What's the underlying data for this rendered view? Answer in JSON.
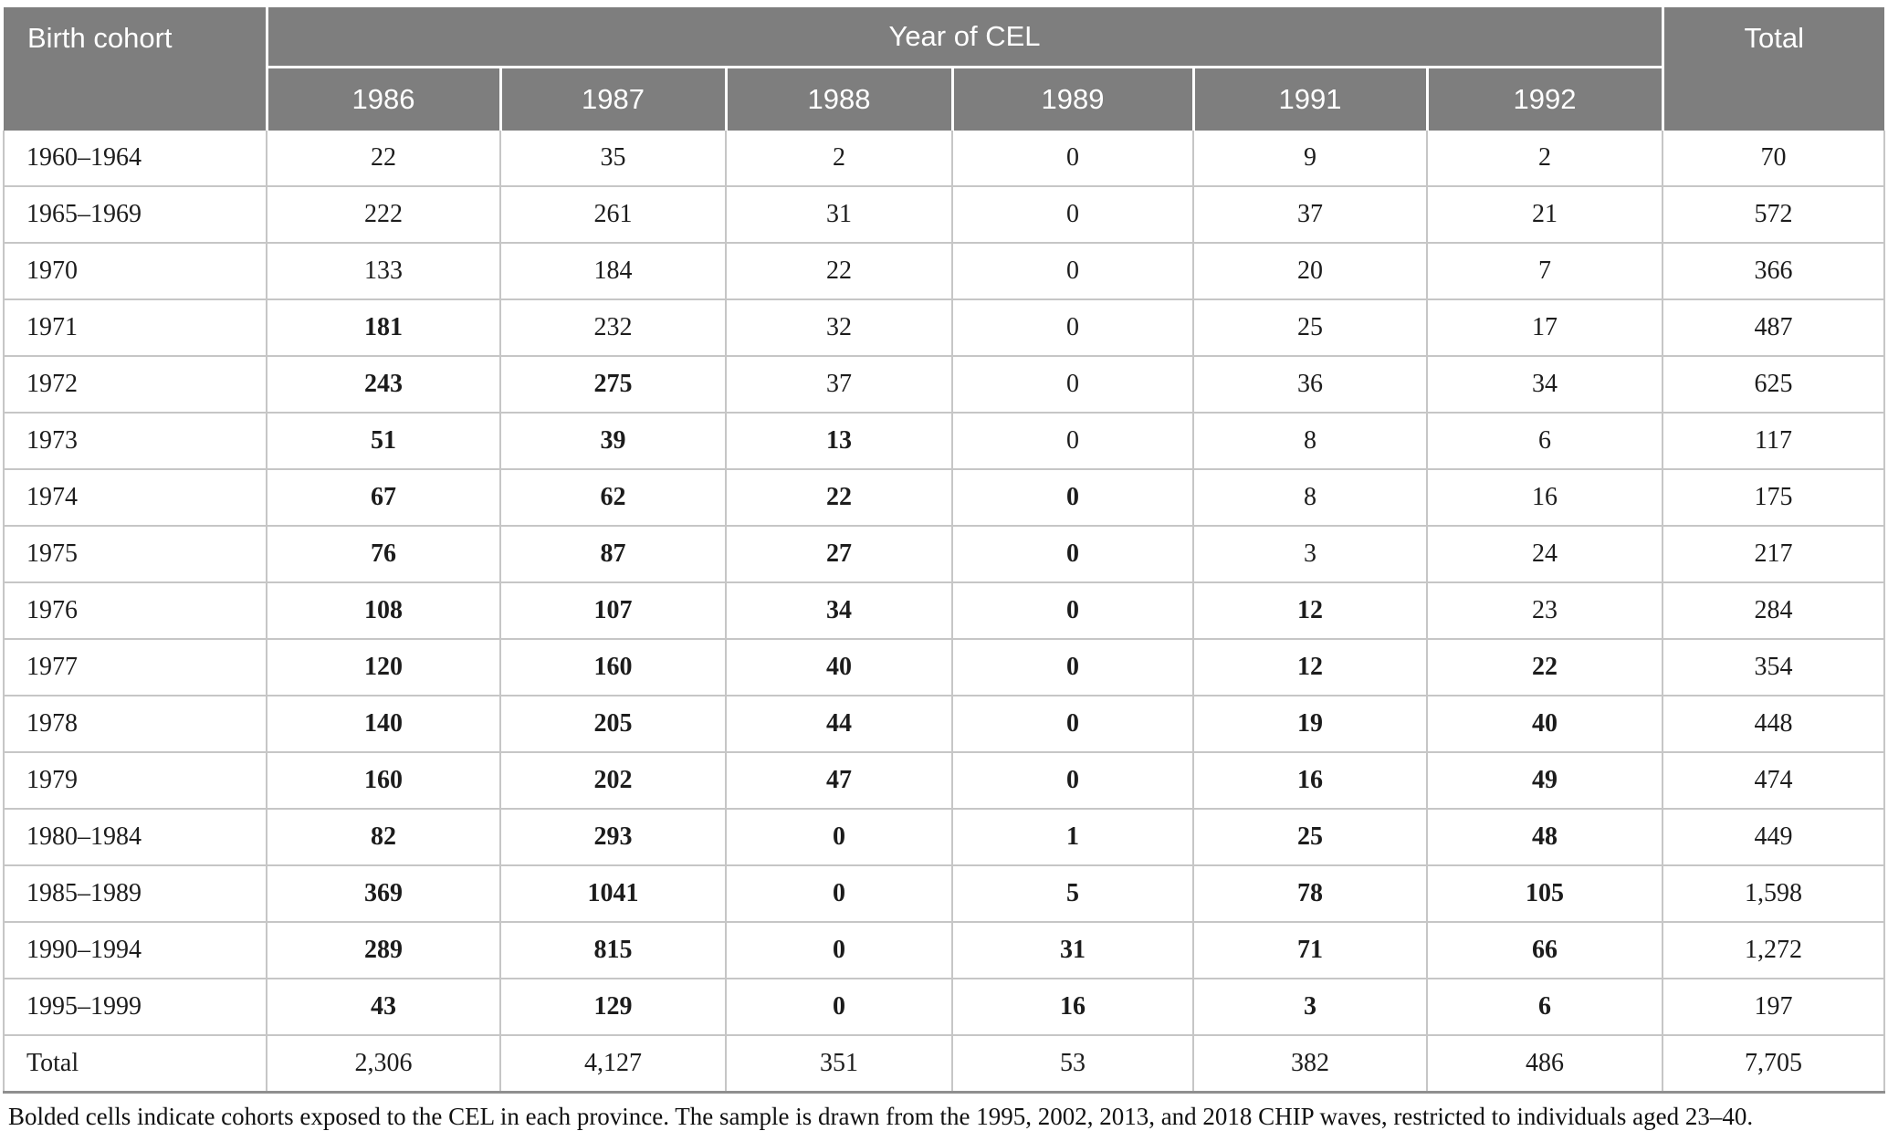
{
  "header": {
    "birth_cohort": "Birth cohort",
    "year_of_cel": "Year of CEL",
    "years": [
      "1986",
      "1987",
      "1988",
      "1989",
      "1991",
      "1992"
    ],
    "total": "Total"
  },
  "rows": [
    {
      "label": "1960–1964",
      "values": [
        "22",
        "35",
        "2",
        "0",
        "9",
        "2"
      ],
      "bold": [
        0,
        0,
        0,
        0,
        0,
        0
      ],
      "total": "70"
    },
    {
      "label": "1965–1969",
      "values": [
        "222",
        "261",
        "31",
        "0",
        "37",
        "21"
      ],
      "bold": [
        0,
        0,
        0,
        0,
        0,
        0
      ],
      "total": "572"
    },
    {
      "label": "1970",
      "values": [
        "133",
        "184",
        "22",
        "0",
        "20",
        "7"
      ],
      "bold": [
        0,
        0,
        0,
        0,
        0,
        0
      ],
      "total": "366"
    },
    {
      "label": "1971",
      "values": [
        "181",
        "232",
        "32",
        "0",
        "25",
        "17"
      ],
      "bold": [
        1,
        0,
        0,
        0,
        0,
        0
      ],
      "total": "487"
    },
    {
      "label": "1972",
      "values": [
        "243",
        "275",
        "37",
        "0",
        "36",
        "34"
      ],
      "bold": [
        1,
        1,
        0,
        0,
        0,
        0
      ],
      "total": "625"
    },
    {
      "label": "1973",
      "values": [
        "51",
        "39",
        "13",
        "0",
        "8",
        "6"
      ],
      "bold": [
        1,
        1,
        1,
        0,
        0,
        0
      ],
      "total": "117"
    },
    {
      "label": "1974",
      "values": [
        "67",
        "62",
        "22",
        "0",
        "8",
        "16"
      ],
      "bold": [
        1,
        1,
        1,
        1,
        0,
        0
      ],
      "total": "175"
    },
    {
      "label": "1975",
      "values": [
        "76",
        "87",
        "27",
        "0",
        "3",
        "24"
      ],
      "bold": [
        1,
        1,
        1,
        1,
        0,
        0
      ],
      "total": "217"
    },
    {
      "label": "1976",
      "values": [
        "108",
        "107",
        "34",
        "0",
        "12",
        "23"
      ],
      "bold": [
        1,
        1,
        1,
        1,
        1,
        0
      ],
      "total": "284"
    },
    {
      "label": "1977",
      "values": [
        "120",
        "160",
        "40",
        "0",
        "12",
        "22"
      ],
      "bold": [
        1,
        1,
        1,
        1,
        1,
        1
      ],
      "total": "354"
    },
    {
      "label": "1978",
      "values": [
        "140",
        "205",
        "44",
        "0",
        "19",
        "40"
      ],
      "bold": [
        1,
        1,
        1,
        1,
        1,
        1
      ],
      "total": "448"
    },
    {
      "label": "1979",
      "values": [
        "160",
        "202",
        "47",
        "0",
        "16",
        "49"
      ],
      "bold": [
        1,
        1,
        1,
        1,
        1,
        1
      ],
      "total": "474"
    },
    {
      "label": "1980–1984",
      "values": [
        "82",
        "293",
        "0",
        "1",
        "25",
        "48"
      ],
      "bold": [
        1,
        1,
        1,
        1,
        1,
        1
      ],
      "total": "449"
    },
    {
      "label": "1985–1989",
      "values": [
        "369",
        "1041",
        "0",
        "5",
        "78",
        "105"
      ],
      "bold": [
        1,
        1,
        1,
        1,
        1,
        1
      ],
      "total": "1,598"
    },
    {
      "label": "1990–1994",
      "values": [
        "289",
        "815",
        "0",
        "31",
        "71",
        "66"
      ],
      "bold": [
        1,
        1,
        1,
        1,
        1,
        1
      ],
      "total": "1,272"
    },
    {
      "label": "1995–1999",
      "values": [
        "43",
        "129",
        "0",
        "16",
        "3",
        "6"
      ],
      "bold": [
        1,
        1,
        1,
        1,
        1,
        1
      ],
      "total": "197"
    }
  ],
  "total_row": {
    "label": "Total",
    "values": [
      "2,306",
      "4,127",
      "351",
      "53",
      "382",
      "486"
    ],
    "total": "7,705"
  },
  "footnote": "Bolded cells indicate cohorts exposed to the CEL in each province. The sample is drawn from the 1995, 2002, 2013, and 2018 CHIP waves, restricted to individuals aged 23–40.",
  "colors": {
    "header_bg": "#7e7e7e",
    "header_text": "#ffffff",
    "body_text": "#1c1c1c",
    "grid_line": "#c6c6c6",
    "table_bottom_line": "#8f8f8f"
  }
}
